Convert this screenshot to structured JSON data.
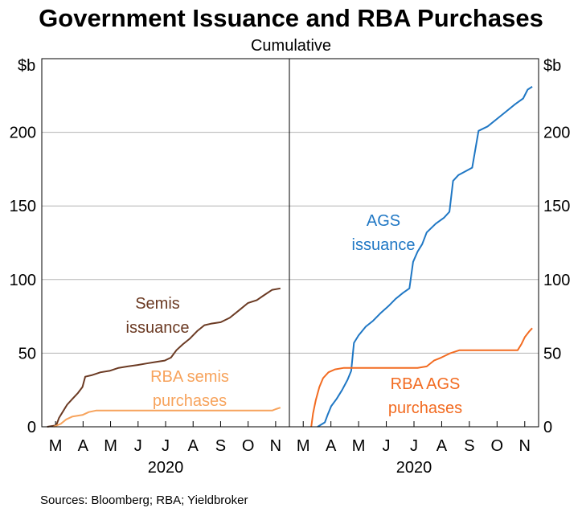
{
  "chart_data": {
    "type": "line",
    "title": "Government Issuance and RBA Purchases",
    "subtitle": "Cumulative",
    "yunit_left": "$b",
    "yunit_right": "$b",
    "ylim": [
      0,
      250
    ],
    "yticks": [
      0,
      50,
      100,
      150,
      200
    ],
    "source": "Sources: Bloomberg; RBA; Yieldbroker",
    "colors": {
      "semis_issuance": "#6b3a23",
      "rba_semis": "#f7a35c",
      "ags_issuance": "#1f77c4",
      "rba_ags": "#f26b21",
      "grid": "#b3b3b3",
      "frame": "#000000"
    },
    "panels": [
      {
        "id": "left",
        "x_tick_labels": [
          "M",
          "A",
          "M",
          "J",
          "J",
          "A",
          "S",
          "O",
          "N"
        ],
        "x_year_label": "2020",
        "series": [
          {
            "name": "Semis issuance",
            "color_key": "semis_issuance",
            "label_lines": [
              "Semis",
              "issuance"
            ],
            "points": [
              [
                "2020-02-26",
                0
              ],
              [
                "2020-03-07",
                1
              ],
              [
                "2020-03-10",
                6
              ],
              [
                "2020-03-15",
                11
              ],
              [
                "2020-03-19",
                15
              ],
              [
                "2020-03-25",
                19
              ],
              [
                "2020-03-31",
                23
              ],
              [
                "2020-04-05",
                27
              ],
              [
                "2020-04-08",
                34
              ],
              [
                "2020-04-15",
                35
              ],
              [
                "2020-04-25",
                37
              ],
              [
                "2020-05-05",
                38
              ],
              [
                "2020-05-15",
                40
              ],
              [
                "2020-05-25",
                41
              ],
              [
                "2020-06-05",
                42
              ],
              [
                "2020-06-15",
                43
              ],
              [
                "2020-06-25",
                44
              ],
              [
                "2020-07-05",
                45
              ],
              [
                "2020-07-12",
                47
              ],
              [
                "2020-07-18",
                52
              ],
              [
                "2020-07-25",
                56
              ],
              [
                "2020-08-02",
                60
              ],
              [
                "2020-08-10",
                65
              ],
              [
                "2020-08-18",
                69
              ],
              [
                "2020-08-25",
                70
              ],
              [
                "2020-09-05",
                71
              ],
              [
                "2020-09-15",
                74
              ],
              [
                "2020-09-25",
                79
              ],
              [
                "2020-10-05",
                84
              ],
              [
                "2020-10-15",
                86
              ],
              [
                "2020-10-22",
                89
              ],
              [
                "2020-11-01",
                93
              ],
              [
                "2020-11-10",
                94
              ]
            ]
          },
          {
            "name": "RBA semis purchases",
            "color_key": "rba_semis",
            "label_lines": [
              "RBA semis",
              "purchases"
            ],
            "points": [
              [
                "2020-03-04",
                0
              ],
              [
                "2020-03-12",
                2
              ],
              [
                "2020-03-18",
                5
              ],
              [
                "2020-03-25",
                7
              ],
              [
                "2020-04-05",
                8
              ],
              [
                "2020-04-12",
                10
              ],
              [
                "2020-04-20",
                11
              ],
              [
                "2020-05-15",
                11
              ],
              [
                "2020-06-15",
                11
              ],
              [
                "2020-08-15",
                11
              ],
              [
                "2020-10-15",
                11
              ],
              [
                "2020-11-01",
                11
              ],
              [
                "2020-11-05",
                12
              ],
              [
                "2020-11-10",
                13
              ]
            ]
          }
        ]
      },
      {
        "id": "right",
        "x_tick_labels": [
          "M",
          "A",
          "M",
          "J",
          "J",
          "A",
          "S",
          "O",
          "N"
        ],
        "x_year_label": "2020",
        "series": [
          {
            "name": "AGS issuance",
            "color_key": "ags_issuance",
            "label_lines": [
              "AGS",
              "issuance"
            ],
            "points": [
              [
                "2020-03-22",
                0
              ],
              [
                "2020-03-30",
                3
              ],
              [
                "2020-04-02",
                8
              ],
              [
                "2020-04-06",
                14
              ],
              [
                "2020-04-12",
                19
              ],
              [
                "2020-04-18",
                25
              ],
              [
                "2020-04-24",
                32
              ],
              [
                "2020-04-28",
                38
              ],
              [
                "2020-05-01",
                57
              ],
              [
                "2020-05-06",
                62
              ],
              [
                "2020-05-14",
                68
              ],
              [
                "2020-05-22",
                72
              ],
              [
                "2020-05-30",
                77
              ],
              [
                "2020-06-08",
                82
              ],
              [
                "2020-06-16",
                87
              ],
              [
                "2020-06-24",
                91
              ],
              [
                "2020-07-01",
                94
              ],
              [
                "2020-07-05",
                112
              ],
              [
                "2020-07-10",
                119
              ],
              [
                "2020-07-15",
                124
              ],
              [
                "2020-07-20",
                132
              ],
              [
                "2020-07-30",
                138
              ],
              [
                "2020-08-08",
                142
              ],
              [
                "2020-08-14",
                146
              ],
              [
                "2020-08-18",
                167
              ],
              [
                "2020-08-24",
                171
              ],
              [
                "2020-08-30",
                173
              ],
              [
                "2020-09-08",
                176
              ],
              [
                "2020-09-15",
                201
              ],
              [
                "2020-09-25",
                204
              ],
              [
                "2020-10-05",
                209
              ],
              [
                "2020-10-15",
                214
              ],
              [
                "2020-10-25",
                219
              ],
              [
                "2020-11-03",
                223
              ],
              [
                "2020-11-08",
                229
              ],
              [
                "2020-11-13",
                231
              ]
            ]
          },
          {
            "name": "RBA AGS purchases",
            "color_key": "rba_ags",
            "label_lines": [
              "RBA AGS",
              "purchases"
            ],
            "points": [
              [
                "2020-03-15",
                0
              ],
              [
                "2020-03-17",
                9
              ],
              [
                "2020-03-20",
                18
              ],
              [
                "2020-03-24",
                27
              ],
              [
                "2020-03-28",
                33
              ],
              [
                "2020-04-03",
                37
              ],
              [
                "2020-04-10",
                39
              ],
              [
                "2020-04-20",
                40
              ],
              [
                "2020-05-15",
                40
              ],
              [
                "2020-06-15",
                40
              ],
              [
                "2020-07-10",
                40
              ],
              [
                "2020-07-20",
                41
              ],
              [
                "2020-07-28",
                45
              ],
              [
                "2020-08-05",
                47
              ],
              [
                "2020-08-15",
                50
              ],
              [
                "2020-08-25",
                52
              ],
              [
                "2020-09-15",
                52
              ],
              [
                "2020-10-15",
                52
              ],
              [
                "2020-10-28",
                52
              ],
              [
                "2020-11-01",
                56
              ],
              [
                "2020-11-05",
                61
              ],
              [
                "2020-11-10",
                65
              ],
              [
                "2020-11-13",
                67
              ]
            ]
          }
        ]
      }
    ]
  }
}
